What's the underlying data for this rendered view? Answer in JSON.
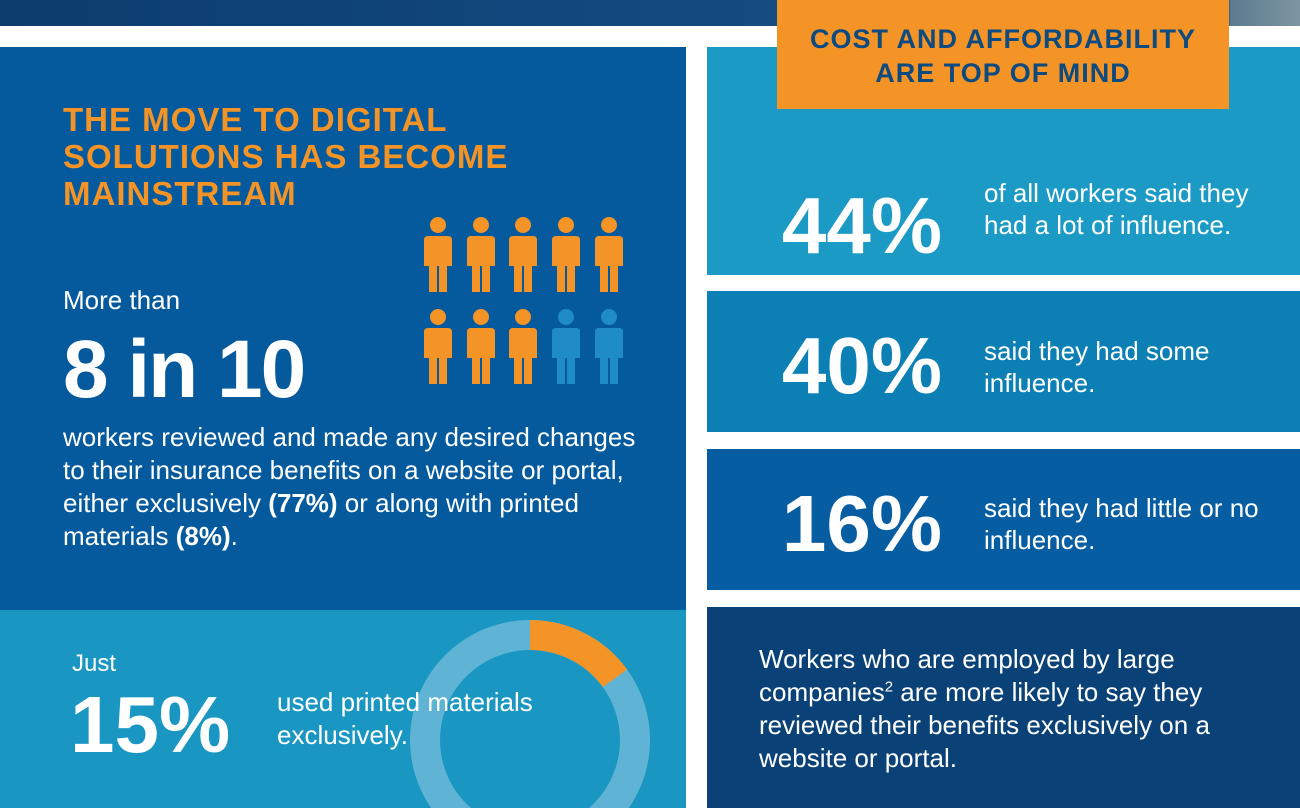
{
  "left": {
    "heading": "THE MOVE TO DIGITAL SOLUTIONS HAS BECOME MAINSTREAM",
    "more_than": "More than",
    "big_stat": "8 in 10",
    "desc_part1": "workers reviewed and made any desired changes to their insurance benefits on a website or portal, either exclusively ",
    "desc_bold1": "(77%)",
    "desc_part2": " or along with printed materials ",
    "desc_bold2": "(8%)",
    "desc_part3": ".",
    "people": {
      "total": 10,
      "highlighted": 8,
      "highlight_color": "#f59426",
      "rest_color": "#1f8cc8"
    }
  },
  "left_bottom": {
    "just": "Just",
    "stat": "15%",
    "text": "used printed materials exclusively.",
    "donut": {
      "highlight_fraction": 0.15,
      "highlight_color": "#f59426",
      "ring_color": "#5fb3d4"
    }
  },
  "right": {
    "callout": "COST AND AFFORDABILITY ARE TOP OF MIND",
    "stats": [
      {
        "value": "44%",
        "text": "of all workers said they had a lot of influence."
      },
      {
        "value": "40%",
        "text": "said they had some influence."
      },
      {
        "value": "16%",
        "text": "said they had little or no influence."
      }
    ],
    "bottom_part1": "Workers who are employed by large companies",
    "bottom_sup": "2",
    "bottom_part2": " are more likely to say they reviewed their benefits exclusively on a website or portal."
  },
  "colors": {
    "orange": "#f59426",
    "navy": "#0a4277",
    "blue": "#045a9c",
    "light_blue": "#1997c2"
  }
}
